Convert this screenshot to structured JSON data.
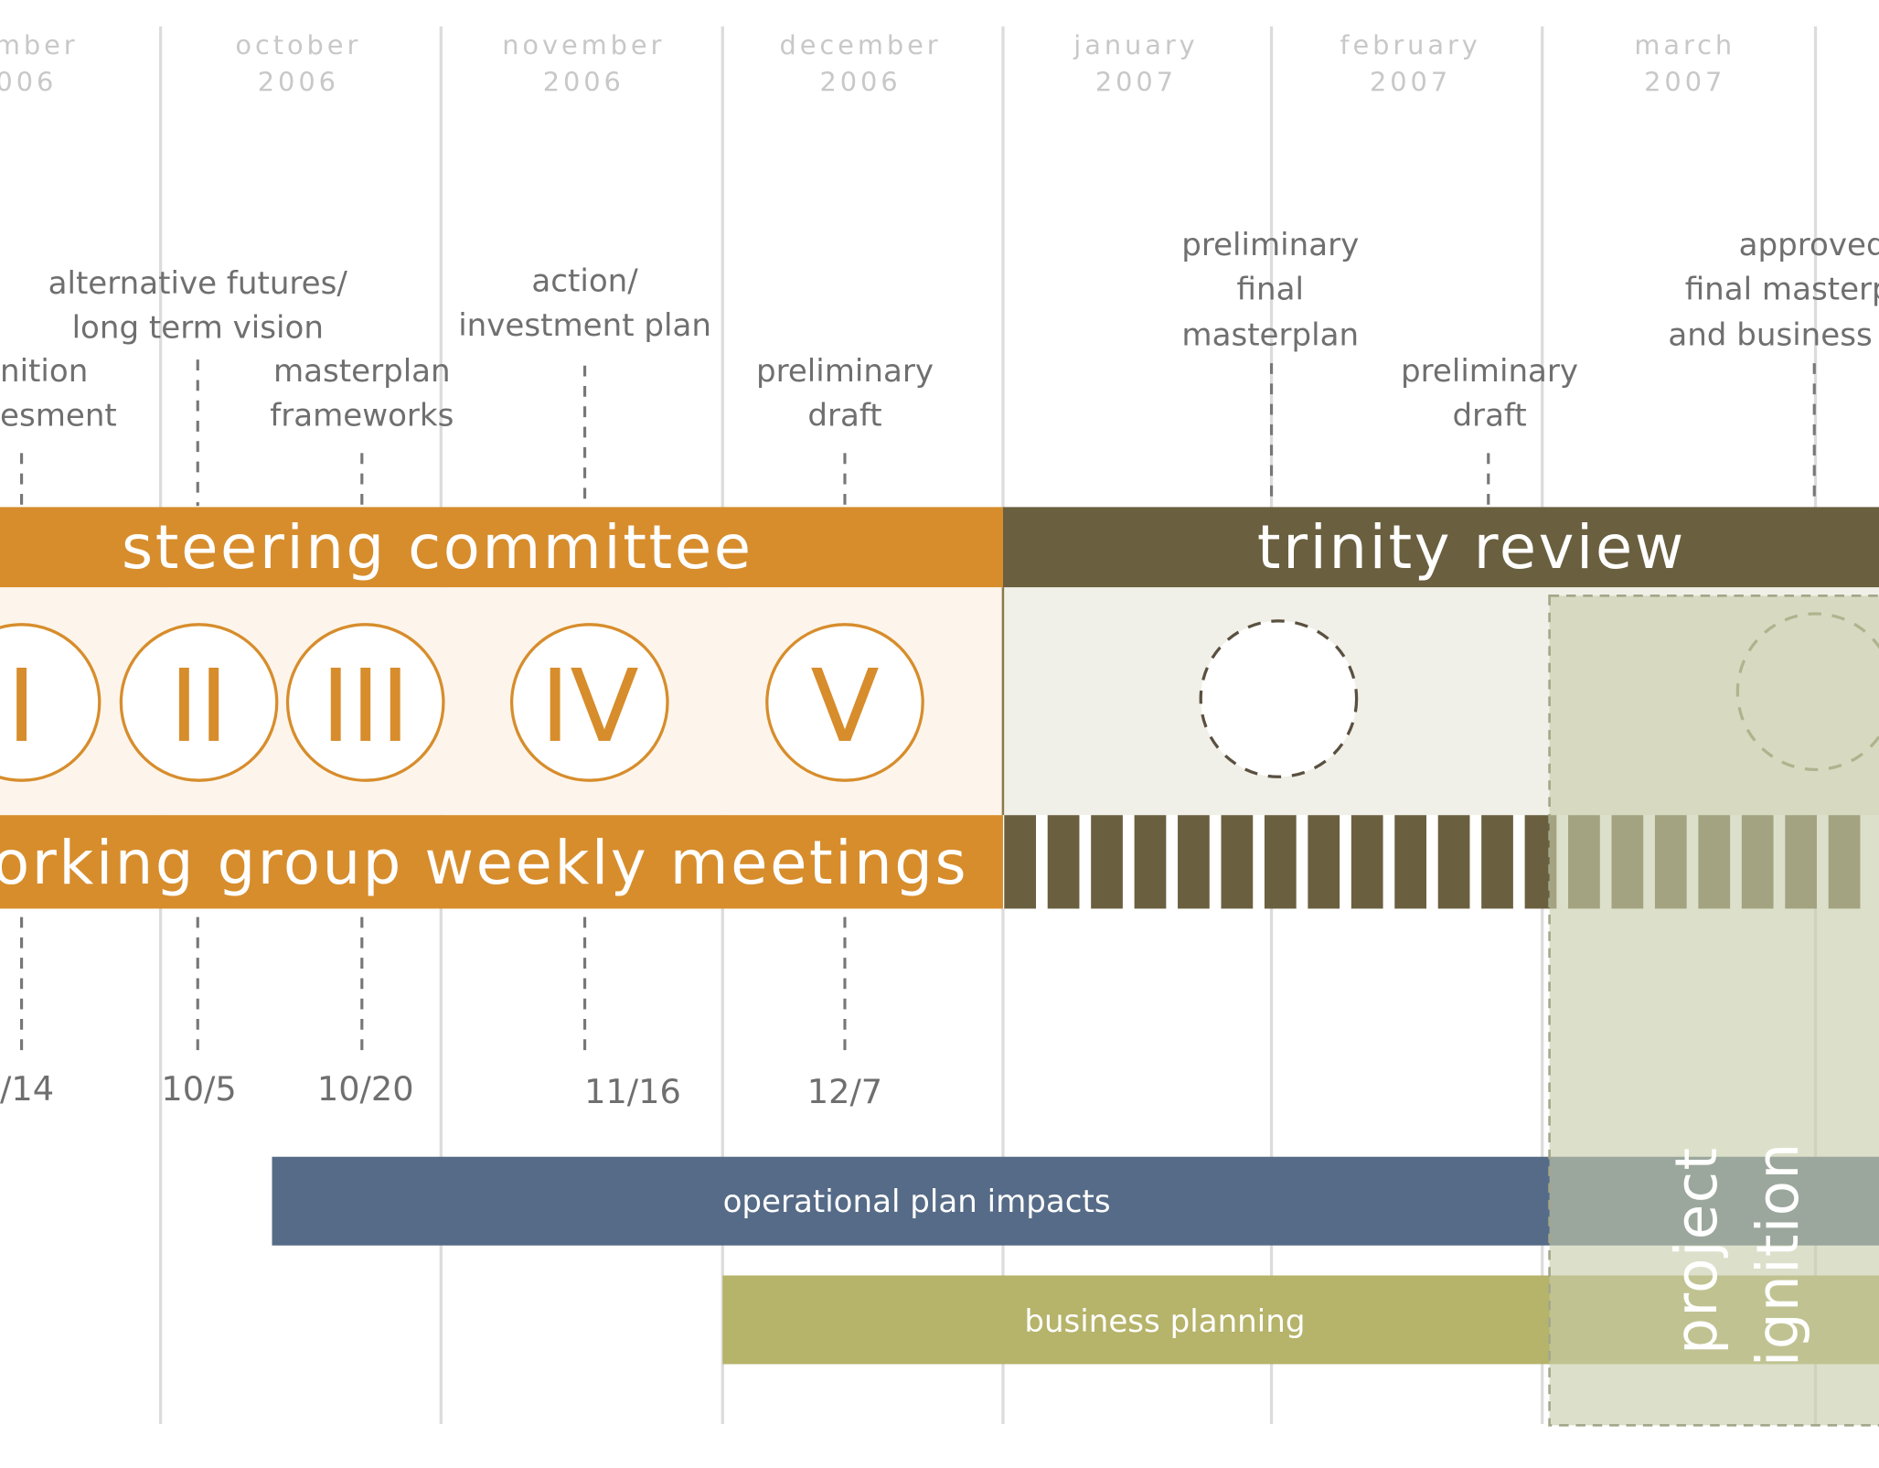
{
  "months": [
    {
      "name": "ember",
      "year": "006"
    },
    {
      "name": "october",
      "year": "2006"
    },
    {
      "name": "november",
      "year": "2006"
    },
    {
      "name": "december",
      "year": "2006"
    },
    {
      "name": "january",
      "year": "2007"
    },
    {
      "name": "february",
      "year": "2007"
    },
    {
      "name": "march",
      "year": "2007"
    }
  ],
  "milestones_top": [
    {
      "id": "definition-assessment",
      "lines": [
        "nition",
        "esment"
      ]
    },
    {
      "id": "alternative-futures",
      "lines": [
        "alternative futures/",
        "long term vision"
      ]
    },
    {
      "id": "masterplan-frameworks",
      "lines": [
        "masterplan",
        "frameworks"
      ]
    },
    {
      "id": "action-investment-plan",
      "lines": [
        "action/",
        "investment plan"
      ]
    },
    {
      "id": "preliminary-draft-1",
      "lines": [
        "preliminary",
        "draft"
      ]
    },
    {
      "id": "preliminary-final-masterplan",
      "lines": [
        "preliminary",
        "final",
        "masterplan"
      ]
    },
    {
      "id": "preliminary-draft-2",
      "lines": [
        "preliminary",
        "draft"
      ]
    },
    {
      "id": "approved-final",
      "lines": [
        "approved",
        "final masterp",
        "and business"
      ]
    }
  ],
  "bands": {
    "steering": "steering committee",
    "trinity": "trinity review",
    "working_group": "orking group weekly meetings"
  },
  "sessions": [
    "I",
    "II",
    "III",
    "IV",
    "V"
  ],
  "dates": [
    "/14",
    "10/5",
    "10/20",
    "11/16",
    "12/7"
  ],
  "bars": {
    "operational": "operational plan impacts",
    "business": "business planning"
  },
  "project_ignition": [
    "project",
    "ignition"
  ],
  "colors": {
    "orange": "#d78d2c",
    "olive_dark": "#6a5f3f",
    "slate_blue": "#566b87",
    "olive_light": "#b6b36a",
    "sage_overlay": "#c6cda9",
    "grid": "#dcdcdc",
    "month_text": "#c8c8c8",
    "label_text": "#6f6f6f",
    "dash": "#777777"
  }
}
